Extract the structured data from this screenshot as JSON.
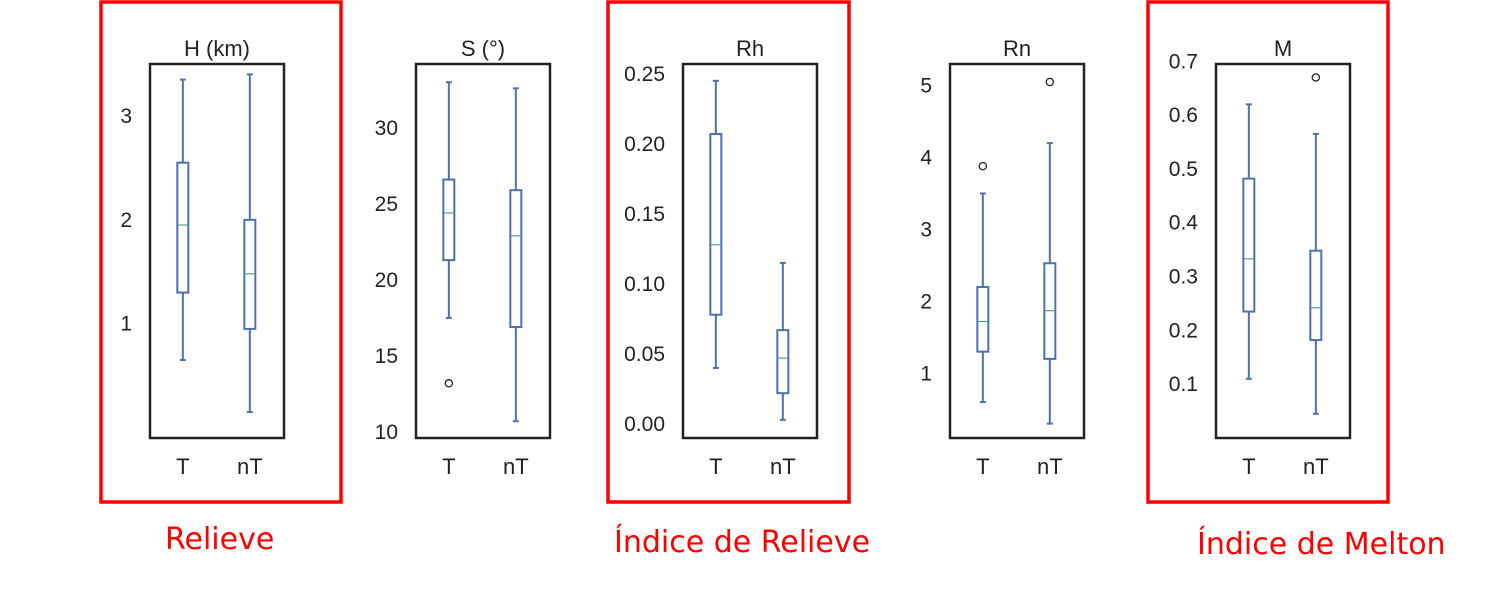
{
  "colors": {
    "box": "#4c72b0",
    "median": "#55a868",
    "frame": "#222222",
    "highlight": "#ff0000",
    "text": "#222222"
  },
  "chart_data": [
    {
      "type": "box",
      "title": "H (km)",
      "highlighted": true,
      "ylim": [
        -0.1,
        3.5
      ],
      "yticks": [
        1,
        2,
        3
      ],
      "yticklabels": [
        "1",
        "2",
        "3"
      ],
      "categories": [
        "T",
        "nT"
      ],
      "boxes": [
        {
          "whislo": 0.65,
          "q1": 1.3,
          "med": 1.95,
          "q3": 2.55,
          "whishi": 3.35,
          "fliers": []
        },
        {
          "whislo": 0.15,
          "q1": 0.95,
          "med": 1.48,
          "q3": 2.0,
          "whishi": 3.4,
          "fliers": []
        }
      ]
    },
    {
      "type": "box",
      "title": "S (°)",
      "highlighted": false,
      "ylim": [
        9.6,
        34.2
      ],
      "yticks": [
        10,
        15,
        20,
        25,
        30
      ],
      "yticklabels": [
        "10",
        "15",
        "20",
        "25",
        "30"
      ],
      "categories": [
        "T",
        "nT"
      ],
      "boxes": [
        {
          "whislo": 17.5,
          "q1": 21.3,
          "med": 24.4,
          "q3": 26.6,
          "whishi": 33.0,
          "fliers": [
            13.2
          ]
        },
        {
          "whislo": 10.7,
          "q1": 16.9,
          "med": 22.9,
          "q3": 25.9,
          "whishi": 32.6,
          "fliers": []
        }
      ]
    },
    {
      "type": "box",
      "title": "Rh",
      "highlighted": true,
      "ylim": [
        -0.01,
        0.257
      ],
      "yticks": [
        0.0,
        0.05,
        0.1,
        0.15,
        0.2,
        0.25
      ],
      "yticklabels": [
        "0.00",
        "0.05",
        "0.10",
        "0.15",
        "0.20",
        "0.25"
      ],
      "categories": [
        "T",
        "nT"
      ],
      "boxes": [
        {
          "whislo": 0.04,
          "q1": 0.078,
          "med": 0.128,
          "q3": 0.207,
          "whishi": 0.245,
          "fliers": []
        },
        {
          "whislo": 0.003,
          "q1": 0.022,
          "med": 0.047,
          "q3": 0.067,
          "whishi": 0.115,
          "fliers": []
        }
      ]
    },
    {
      "type": "box",
      "title": "Rn",
      "highlighted": false,
      "ylim": [
        0.1,
        5.3
      ],
      "yticks": [
        1,
        2,
        3,
        4,
        5
      ],
      "yticklabels": [
        "1",
        "2",
        "3",
        "4",
        "5"
      ],
      "categories": [
        "T",
        "nT"
      ],
      "boxes": [
        {
          "whislo": 0.6,
          "q1": 1.3,
          "med": 1.72,
          "q3": 2.2,
          "whishi": 3.5,
          "fliers": [
            3.88
          ]
        },
        {
          "whislo": 0.3,
          "q1": 1.2,
          "med": 1.87,
          "q3": 2.53,
          "whishi": 4.2,
          "fliers": [
            5.05
          ]
        }
      ]
    },
    {
      "type": "box",
      "title": "M",
      "highlighted": true,
      "ylim": [
        0.0,
        0.695
      ],
      "yticks": [
        0.1,
        0.2,
        0.3,
        0.4,
        0.5,
        0.6,
        0.7
      ],
      "yticklabels": [
        "0.1",
        "0.2",
        "0.3",
        "0.4",
        "0.5",
        "0.6",
        "0.7"
      ],
      "categories": [
        "T",
        "nT"
      ],
      "boxes": [
        {
          "whislo": 0.11,
          "q1": 0.235,
          "med": 0.333,
          "q3": 0.482,
          "whishi": 0.62,
          "fliers": []
        },
        {
          "whislo": 0.045,
          "q1": 0.182,
          "med": 0.242,
          "q3": 0.348,
          "whishi": 0.565,
          "fliers": [
            0.67
          ]
        }
      ]
    }
  ],
  "captions": [
    "Relieve",
    "Índice de Relieve",
    "Índice de Melton"
  ]
}
